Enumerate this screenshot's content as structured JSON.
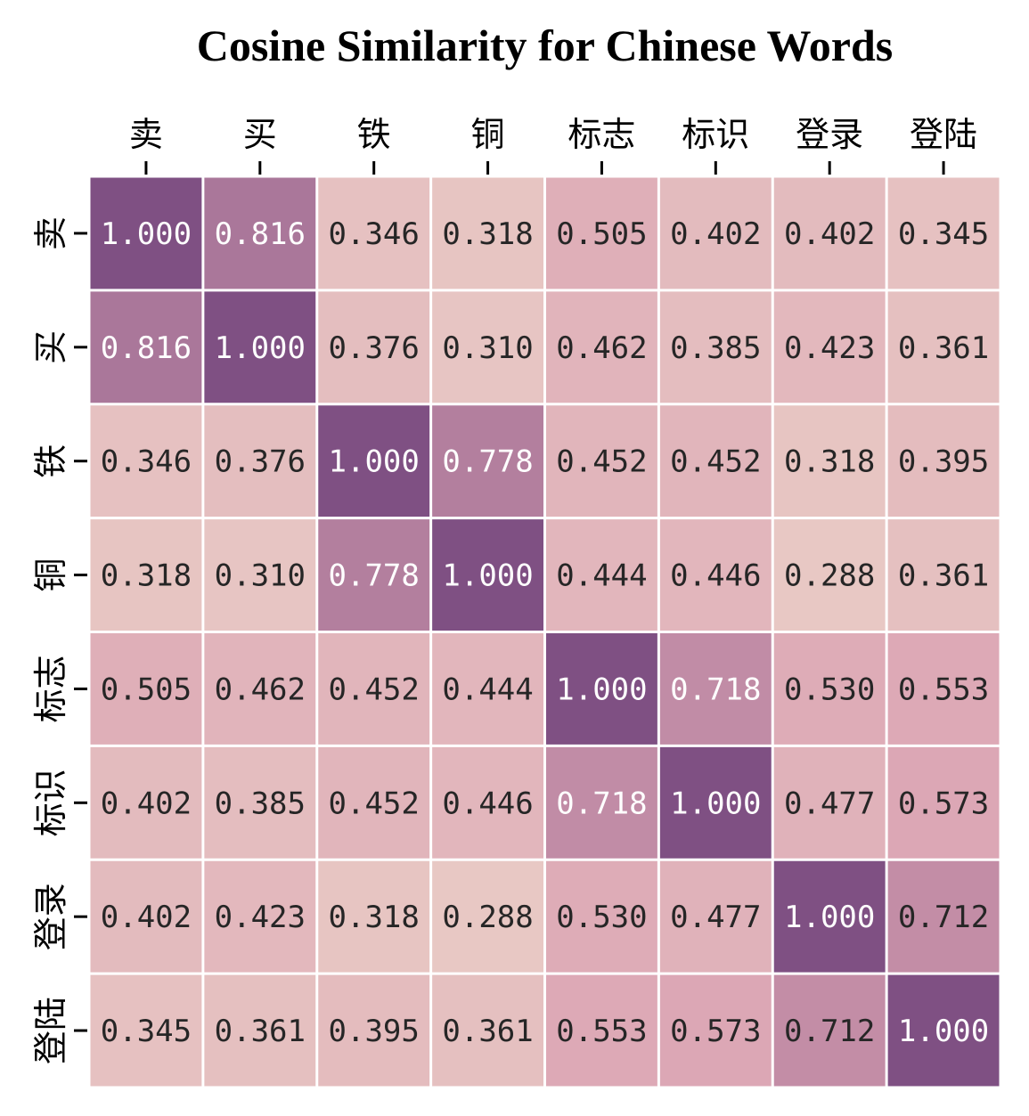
{
  "chart_data": {
    "type": "heatmap",
    "title": "Cosine Similarity for Chinese Words",
    "x_labels": [
      "卖",
      "买",
      "铁",
      "铜",
      "标志",
      "标识",
      "登录",
      "登陆"
    ],
    "y_labels": [
      "卖",
      "买",
      "铁",
      "铜",
      "标志",
      "标识",
      "登录",
      "登陆"
    ],
    "values": [
      [
        1.0,
        0.816,
        0.346,
        0.318,
        0.505,
        0.402,
        0.402,
        0.345
      ],
      [
        0.816,
        1.0,
        0.376,
        0.31,
        0.462,
        0.385,
        0.423,
        0.361
      ],
      [
        0.346,
        0.376,
        1.0,
        0.778,
        0.452,
        0.452,
        0.318,
        0.395
      ],
      [
        0.318,
        0.31,
        0.778,
        1.0,
        0.444,
        0.446,
        0.288,
        0.361
      ],
      [
        0.505,
        0.462,
        0.452,
        0.444,
        1.0,
        0.718,
        0.53,
        0.553
      ],
      [
        0.402,
        0.385,
        0.452,
        0.446,
        0.718,
        1.0,
        0.477,
        0.573
      ],
      [
        0.402,
        0.423,
        0.318,
        0.288,
        0.53,
        0.477,
        1.0,
        0.712
      ],
      [
        0.345,
        0.361,
        0.395,
        0.361,
        0.553,
        0.573,
        0.712,
        1.0
      ]
    ],
    "value_format": "0.000",
    "colormap": {
      "low_color": "#e8c8c4",
      "mid_color": "#dba3b3",
      "high_color": "#7f5083",
      "vmin": 0.288,
      "vmax": 1.0
    },
    "x_tick_position": "top",
    "y_tick_position": "left",
    "colorbar": false,
    "grid": false,
    "cell_separator_color": "#ffffff"
  }
}
